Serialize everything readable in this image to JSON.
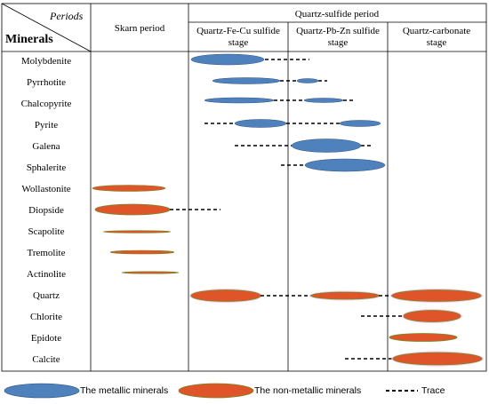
{
  "header": {
    "periods_label": "Periods",
    "minerals_label": "Minerals",
    "skarn_period": "Skarn period",
    "quartz_sulfide_period": "Quartz-sulfide period",
    "stage1_line1": "Quartz-Fe-Cu sulfide",
    "stage1_line2": "stage",
    "stage2_line1": "Quartz-Pb-Zn sulfide",
    "stage2_line2": "stage",
    "stage3_line1": "Quartz-carbonate",
    "stage3_line2": "stage"
  },
  "minerals": [
    "Molybdenite",
    "Pyrrhotite",
    "Chalcopyrite",
    "Pyrite",
    "Galena",
    "Sphalerite",
    "Wollastonite",
    "Diopside",
    "Scapolite",
    "Tremolite",
    "Actinolite",
    "Quartz",
    "Chlorite",
    "Epidote",
    "Calcite"
  ],
  "colors": {
    "metallic_fill": "#4f81bd",
    "nonmetallic_fill": "#e0542a",
    "nonmetallic_edge": "#6b8e23",
    "glow": "#ffb3e6",
    "trace": "#000000"
  },
  "legend": {
    "metallic": "The metallic minerals",
    "nonmetallic": "The non-metallic minerals",
    "trace": "Trace"
  }
}
